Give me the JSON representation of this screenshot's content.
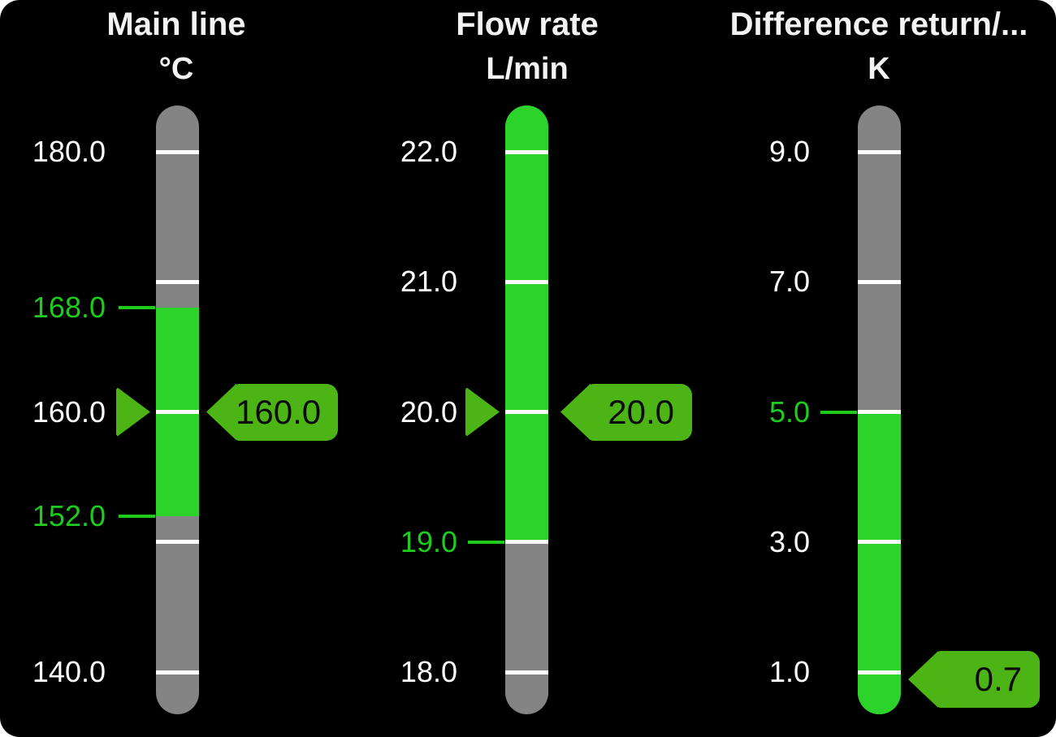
{
  "screen": {
    "background": "#000000"
  },
  "colors": {
    "bar_gray": "#848484",
    "bar_green": "#2BD32B",
    "limit_green": "#1ECC1E",
    "indicator_green": "#4CB515",
    "tick_white": "#FFFFFF",
    "label_white": "#FFFFFF",
    "title_white": "#F2F2F2",
    "tag_text": "#0A0A0A"
  },
  "gauges": [
    {
      "title": "Main line",
      "unit": "°C",
      "major_ticks": [
        180,
        170,
        160,
        150,
        140
      ],
      "labels": [
        {
          "text": "180.0",
          "value": 180,
          "color": "white",
          "limit_line": false
        },
        {
          "text": "168.0",
          "value": 168,
          "color": "green",
          "limit_line": true
        },
        {
          "text": "160.0",
          "value": 160,
          "color": "white",
          "limit_line": false
        },
        {
          "text": "152.0",
          "value": 152,
          "color": "green",
          "limit_line": true
        },
        {
          "text": "140.0",
          "value": 140,
          "color": "white",
          "limit_line": false
        }
      ],
      "green_zone": {
        "from": 152,
        "to": 168
      },
      "value": 160.0,
      "tag_text": "160.0",
      "show_pointer": true
    },
    {
      "title": "Flow rate",
      "unit": "L/min",
      "major_ticks": [
        22,
        21,
        20,
        19,
        18
      ],
      "labels": [
        {
          "text": "22.0",
          "value": 22,
          "color": "white",
          "limit_line": false
        },
        {
          "text": "21.0",
          "value": 21,
          "color": "white",
          "limit_line": false
        },
        {
          "text": "20.0",
          "value": 20,
          "color": "white",
          "limit_line": false
        },
        {
          "text": "19.0",
          "value": 19,
          "color": "green",
          "limit_line": true
        },
        {
          "text": "18.0",
          "value": 18,
          "color": "white",
          "limit_line": false
        }
      ],
      "green_zone": {
        "from": 19,
        "to": "top"
      },
      "value": 20.0,
      "tag_text": "20.0",
      "show_pointer": true
    },
    {
      "title": "Difference return/...",
      "unit": "K",
      "major_ticks": [
        9,
        7,
        5,
        3,
        1
      ],
      "labels": [
        {
          "text": "9.0",
          "value": 9,
          "color": "white",
          "limit_line": false
        },
        {
          "text": "7.0",
          "value": 7,
          "color": "white",
          "limit_line": false
        },
        {
          "text": "5.0",
          "value": 5,
          "color": "green",
          "limit_line": true
        },
        {
          "text": "3.0",
          "value": 3,
          "color": "white",
          "limit_line": false
        },
        {
          "text": "1.0",
          "value": 1,
          "color": "white",
          "limit_line": false
        }
      ],
      "green_zone": {
        "from": "bottom",
        "to": 5
      },
      "value": 0.7,
      "tag_text": "0.7",
      "show_pointer": false
    }
  ]
}
